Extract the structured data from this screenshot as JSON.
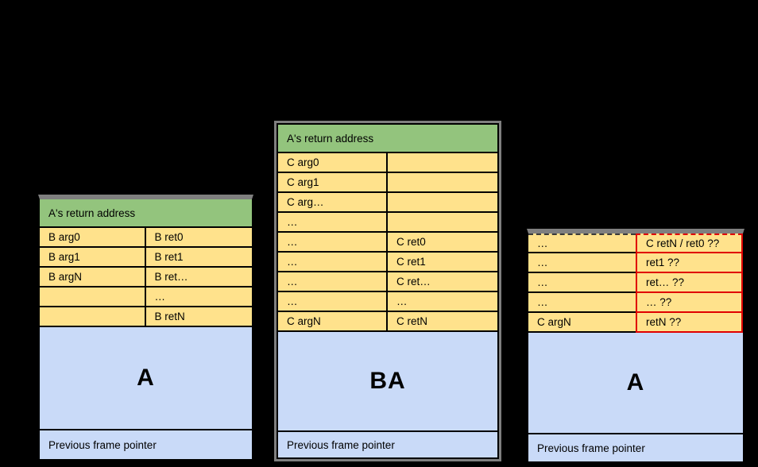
{
  "colors": {
    "canvas_bg": "#000000",
    "green": "#93c47d",
    "yellow": "#ffe28c",
    "blue": "#c9daf8",
    "red_border": "#e00000",
    "gray_frame": "#7f7f7f",
    "line": "#000000",
    "text": "#000000"
  },
  "stacks": [
    {
      "header": "A's return address",
      "rows": [
        {
          "left": "B arg0",
          "right": "B ret0"
        },
        {
          "left": "B arg1",
          "right": "B ret1"
        },
        {
          "left": "B argN",
          "right": "B ret…"
        },
        {
          "left": "",
          "right": "…"
        },
        {
          "left": "",
          "right": "B retN"
        }
      ],
      "body_label": "A",
      "footer": "Previous frame pointer"
    },
    {
      "header": "A's return address",
      "rows": [
        {
          "left": "C arg0",
          "right": ""
        },
        {
          "left": "C arg1",
          "right": ""
        },
        {
          "left": "C arg…",
          "right": ""
        },
        {
          "left": "…",
          "right": ""
        },
        {
          "left": "…",
          "right": "C ret0"
        },
        {
          "left": "…",
          "right": "C ret1"
        },
        {
          "left": "…",
          "right": "C ret…"
        },
        {
          "left": "…",
          "right": "…"
        },
        {
          "left": "C argN",
          "right": "C retN"
        }
      ],
      "body_label": "BA",
      "footer": "Previous frame pointer"
    },
    {
      "header": null,
      "rows": [
        {
          "left": "…",
          "right": "C retN / ret0 ??"
        },
        {
          "left": "…",
          "right": "ret1 ??"
        },
        {
          "left": "…",
          "right": "ret… ??"
        },
        {
          "left": "…",
          "right": "… ??"
        },
        {
          "left": "C argN",
          "right": "retN ??"
        }
      ],
      "body_label": "A",
      "footer": "Previous frame pointer"
    }
  ]
}
